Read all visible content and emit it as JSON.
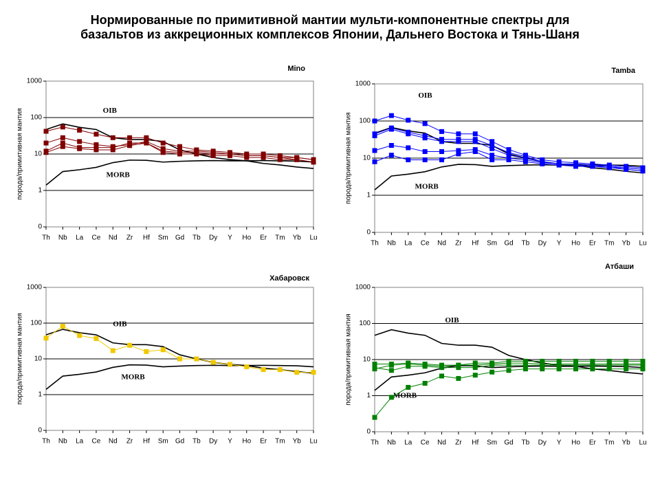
{
  "title": [
    "Нормированные по примитивной мантии мульти-компонентные спектры для",
    "базальтов из аккреционных комплексов Японии, Дальнего Востока и Тянь-Шаня"
  ],
  "chart_data": [
    {
      "type": "line",
      "title": "Mino",
      "ylabel": "порода/примитивная мантия",
      "log": true,
      "grid": true,
      "categories": [
        "Th",
        "Nb",
        "La",
        "Ce",
        "Nd",
        "Zr",
        "Hf",
        "Sm",
        "Gd",
        "Tb",
        "Dy",
        "Y",
        "Ho",
        "Er",
        "Tm",
        "Yb",
        "Lu"
      ],
      "ylim": [
        0.1,
        1000
      ],
      "yticks": [
        {
          "value": 0.1,
          "label": "0"
        },
        1,
        10,
        100,
        1000
      ],
      "series": [
        {
          "name": "OIB",
          "color": "#000000",
          "values": [
            47,
            67,
            54,
            47,
            28,
            25,
            25,
            22,
            13,
            10,
            8,
            7,
            6.5,
            5.5,
            5,
            4.4,
            4
          ]
        },
        {
          "name": "MORB",
          "color": "#000000",
          "values": [
            1.4,
            3.3,
            3.7,
            4.3,
            5.8,
            6.8,
            6.7,
            6,
            6.3,
            6.5,
            6.6,
            6.5,
            6.5,
            6.6,
            6.5,
            6.4,
            6
          ]
        },
        {
          "color": "#800000",
          "values": [
            42,
            55,
            45,
            35,
            28,
            28,
            28,
            20,
            16,
            13,
            12,
            11,
            10,
            10,
            9,
            8,
            7
          ]
        },
        {
          "color": "#800000",
          "values": [
            20,
            28,
            22,
            18,
            16,
            18,
            22,
            14,
            12,
            12,
            11,
            10,
            9,
            9,
            8,
            8,
            7
          ]
        },
        {
          "color": "#800000",
          "values": [
            12,
            20,
            15,
            15,
            15,
            20,
            20,
            12,
            11,
            11,
            10,
            10,
            9,
            9,
            8,
            7,
            6
          ]
        },
        {
          "color": "#800000",
          "values": [
            11,
            16,
            14,
            13,
            13,
            17,
            20,
            11,
            10,
            10,
            9,
            9,
            8,
            8,
            7,
            7,
            6
          ]
        }
      ]
    },
    {
      "type": "line",
      "title": "Tamba",
      "ylabel": "порода/примитивная мантия",
      "log": true,
      "grid": true,
      "categories": [
        "Th",
        "Nb",
        "La",
        "Ce",
        "Nd",
        "Zr",
        "Hf",
        "Sm",
        "Gd",
        "Tb",
        "Dy",
        "Y",
        "Ho",
        "Er",
        "Tm",
        "Yb",
        "Lu"
      ],
      "ylim": [
        0.1,
        1000
      ],
      "yticks": [
        {
          "value": 0.1,
          "label": "0"
        },
        1,
        10,
        100,
        1000
      ],
      "series": [
        {
          "name": "OIB",
          "color": "#000000",
          "values": [
            47,
            67,
            54,
            47,
            28,
            25,
            25,
            22,
            13,
            10,
            8,
            7,
            6.5,
            5.5,
            5,
            4.4,
            4
          ]
        },
        {
          "name": "MORB",
          "color": "#000000",
          "values": [
            1.4,
            3.3,
            3.7,
            4.3,
            5.8,
            6.8,
            6.7,
            6,
            6.3,
            6.5,
            6.6,
            6.5,
            6.5,
            6.6,
            6.5,
            6.4,
            6
          ]
        },
        {
          "color": "#0000ff",
          "values": [
            100,
            140,
            105,
            85,
            52,
            45,
            45,
            28,
            17,
            12,
            9,
            8,
            7.5,
            7,
            6.5,
            6,
            5.5
          ]
        },
        {
          "color": "#0000ff",
          "values": [
            45,
            65,
            50,
            40,
            32,
            32,
            32,
            22,
            14,
            11,
            8,
            7,
            7,
            6.5,
            6,
            5.5,
            5
          ]
        },
        {
          "color": "#0000ff",
          "values": [
            40,
            60,
            45,
            35,
            28,
            28,
            28,
            18,
            12,
            10,
            8,
            7,
            6.5,
            6,
            6,
            5,
            4.5
          ]
        },
        {
          "color": "#0000ff",
          "values": [
            16,
            22,
            19,
            15,
            15,
            16,
            17,
            12,
            10,
            9,
            7.5,
            7,
            6.5,
            6,
            6,
            5.5,
            5
          ]
        },
        {
          "color": "#0000ff",
          "values": [
            8,
            12,
            9,
            9,
            9,
            13,
            15,
            9,
            9,
            8,
            7,
            6.5,
            6,
            6,
            5.5,
            5,
            4.5
          ]
        }
      ]
    },
    {
      "type": "line",
      "title": "Хабаровск",
      "ylabel": "порода/примитивная мантия",
      "log": true,
      "grid": true,
      "categories": [
        "Th",
        "Nb",
        "La",
        "Ce",
        "Nd",
        "Zr",
        "Hf",
        "Sm",
        "Gd",
        "Tb",
        "Dy",
        "Y",
        "Ho",
        "Er",
        "Tm",
        "Yb",
        "Lu"
      ],
      "ylim": [
        0.1,
        1000
      ],
      "yticks": [
        {
          "value": 0.1,
          "label": "0"
        },
        1,
        10,
        100,
        1000
      ],
      "series": [
        {
          "name": "OIB",
          "color": "#000000",
          "values": [
            47,
            67,
            54,
            47,
            28,
            25,
            25,
            22,
            13,
            10,
            8,
            7,
            6.5,
            5.5,
            5,
            4.4,
            4
          ]
        },
        {
          "name": "MORB",
          "color": "#000000",
          "values": [
            1.4,
            3.3,
            3.7,
            4.3,
            5.8,
            6.8,
            6.7,
            6,
            6.3,
            6.5,
            6.6,
            6.5,
            6.5,
            6.6,
            6.5,
            6.4,
            6
          ]
        },
        {
          "color": "#f0c800",
          "values": [
            38,
            82,
            45,
            37,
            17,
            24,
            16,
            18,
            10,
            10,
            8,
            7,
            6,
            5,
            5,
            4.2,
            4.2
          ]
        }
      ]
    },
    {
      "type": "line",
      "title": "Атбаши",
      "ylabel": "порода/примитивная мантия",
      "log": true,
      "grid": true,
      "categories": [
        "Th",
        "Nb",
        "La",
        "Ce",
        "Nd",
        "Zr",
        "Hf",
        "Sm",
        "Gd",
        "Tb",
        "Dy",
        "Y",
        "Ho",
        "Er",
        "Tm",
        "Yb",
        "Lu"
      ],
      "ylim": [
        0.1,
        1000
      ],
      "yticks": [
        {
          "value": 0.1,
          "label": "0"
        },
        1,
        10,
        100,
        1000
      ],
      "series": [
        {
          "name": "OIB",
          "color": "#000000",
          "values": [
            47,
            67,
            54,
            47,
            28,
            25,
            25,
            22,
            13,
            10,
            8,
            7,
            6.5,
            5.5,
            5,
            4.4,
            4
          ]
        },
        {
          "name": "MORB",
          "color": "#000000",
          "values": [
            1.4,
            3.3,
            3.7,
            4.3,
            5.8,
            6.8,
            6.7,
            6,
            6.3,
            6.5,
            6.6,
            6.5,
            6.5,
            6.6,
            6.5,
            6.4,
            6
          ]
        },
        {
          "color": "#008000",
          "values": [
            0.25,
            0.9,
            1.7,
            2.2,
            3.5,
            3,
            3.7,
            4.5,
            5,
            5.5,
            5.5,
            5.5,
            5.5,
            5.5,
            5.5,
            5.5,
            5.5
          ]
        },
        {
          "color": "#008000",
          "values": [
            7.5,
            7.5,
            8,
            7.5,
            7,
            7,
            8,
            8,
            9,
            9,
            9,
            9,
            9,
            9,
            9,
            9,
            9
          ]
        },
        {
          "color": "#008000",
          "values": [
            6,
            5,
            6.5,
            6.5,
            6,
            6,
            6,
            7,
            7,
            7,
            7,
            7,
            7,
            7,
            7,
            7,
            7
          ]
        },
        {
          "color": "#008000",
          "values": [
            5.5,
            7,
            7.5,
            7,
            6.5,
            7,
            7,
            7.5,
            8,
            8,
            7.5,
            7.5,
            7.5,
            7.5,
            7.5,
            7.5,
            7.5
          ]
        }
      ]
    }
  ]
}
